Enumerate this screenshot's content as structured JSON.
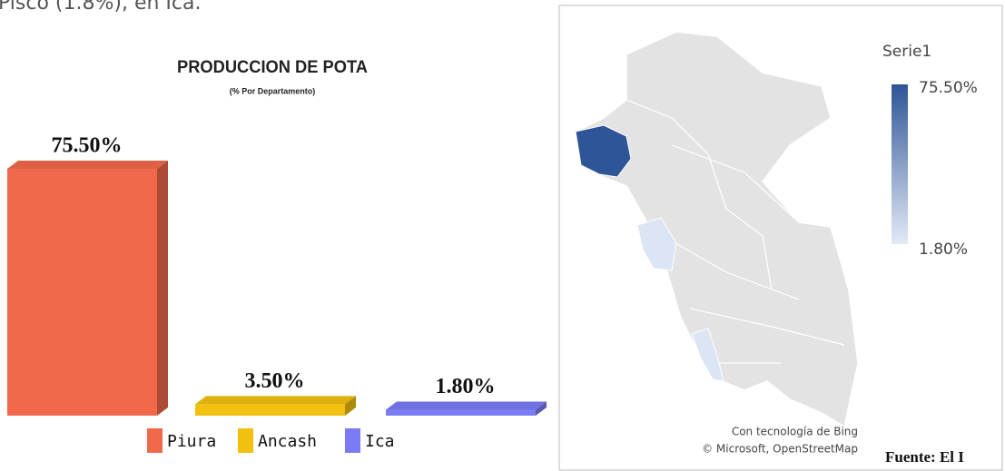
{
  "header_text": "Pisco (1.8%), en Ica.",
  "chart_data": {
    "type": "bar",
    "title": "PRODUCCION DE POTA",
    "subtitle": "(% Por Departamento)",
    "categories": [
      "Piura",
      "Ancash",
      "Ica"
    ],
    "values": [
      75.5,
      3.5,
      1.8
    ],
    "value_labels": [
      "75.50%",
      "3.50%",
      "1.80%"
    ],
    "colors": [
      "#f0694a",
      "#f2c00e",
      "#7b7cf5"
    ],
    "legend": "bottom",
    "grid": false
  },
  "map": {
    "legend_title": "Serie1",
    "legend_max": "75.50%",
    "legend_min": "1.80%",
    "credits": [
      "Con tecnología de Bing",
      "© Microsoft, OpenStreetMap"
    ]
  },
  "footer_text": "Fuente: El I"
}
